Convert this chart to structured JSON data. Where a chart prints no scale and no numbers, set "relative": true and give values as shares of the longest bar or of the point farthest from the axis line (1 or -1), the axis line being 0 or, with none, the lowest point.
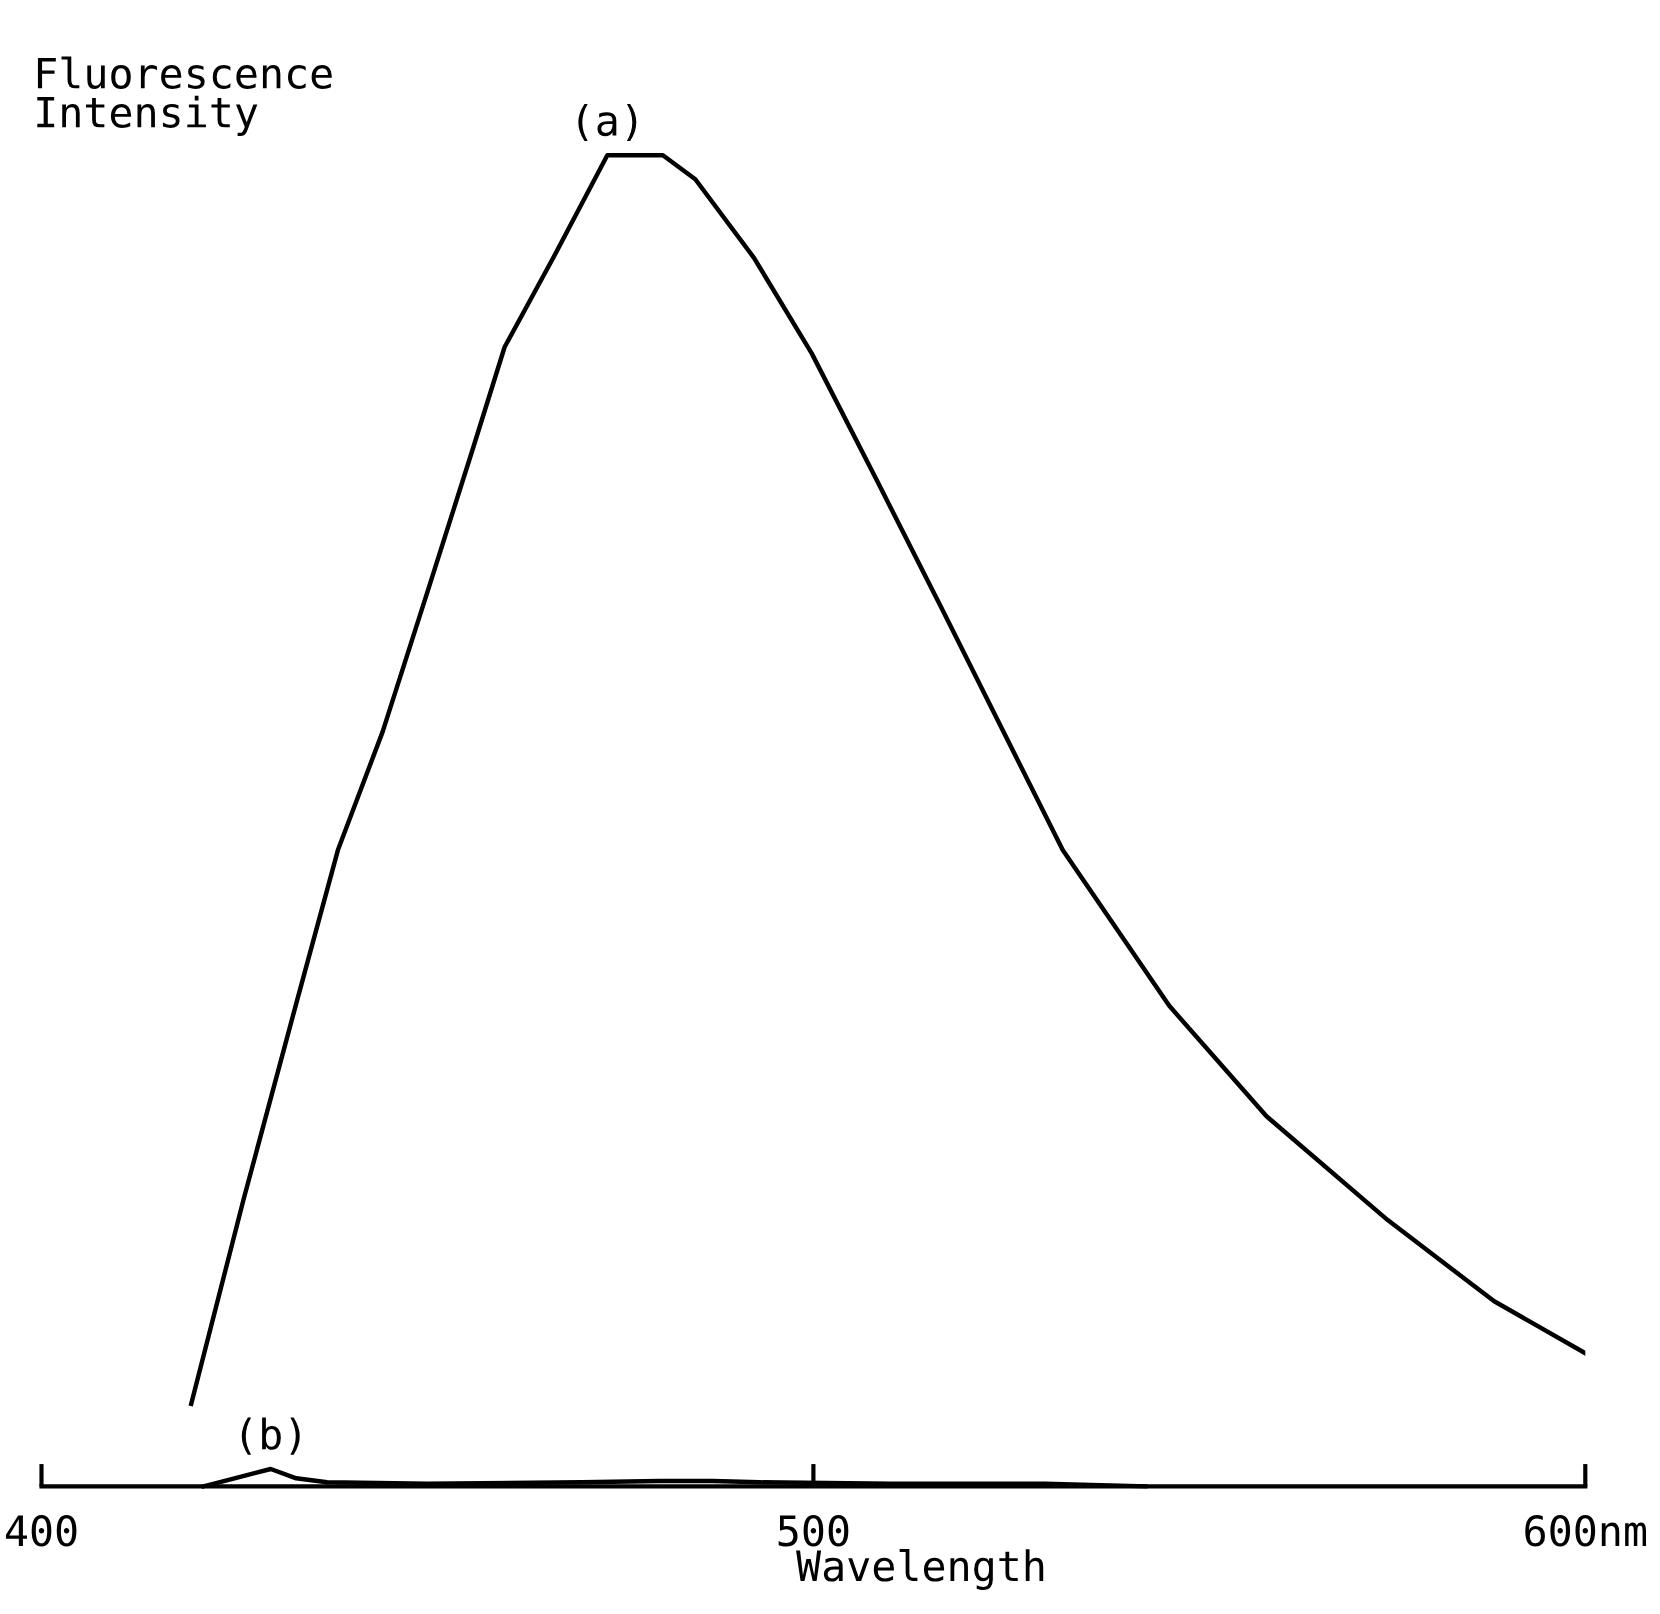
{
  "chart_data": {
    "type": "line",
    "relative": true,
    "xlabel": "Wavelength",
    "ylabel": "Fluorescence\nIntensity",
    "xlim": [
      400,
      600
    ],
    "xticks": [
      400,
      500,
      {
        "value": 600,
        "label": "600nm"
      }
    ],
    "grid": false,
    "legend": false,
    "marker": "none",
    "line_style": "solid",
    "series": [
      {
        "name": "(a)",
        "color": "#000000",
        "x": [
          419.4,
          426.2,
          433.2,
          438.4,
          444.2,
          450,
          455.8,
          460,
          466.3,
          473.3,
          480.5,
          484.7,
          492.3,
          499.8,
          508.2,
          516.5,
          532.3,
          546.1,
          558.7,
          574.4,
          588.2,
          600
        ],
        "values": [
          0.062,
          0.216,
          0.367,
          0.478,
          0.567,
          0.672,
          0.778,
          0.856,
          0.923,
          1.0,
          1.0,
          0.982,
          0.923,
          0.851,
          0.756,
          0.661,
          0.478,
          0.361,
          0.278,
          0.2,
          0.139,
          0.1
        ]
      },
      {
        "name": "(b)",
        "color": "#000000",
        "x": [
          421,
          425,
          429.7,
          433,
          437,
          450,
          470,
          480,
          487,
          493,
          510,
          530,
          543
        ],
        "values": [
          0.0,
          0.006,
          0.013,
          0.006,
          0.003,
          0.002,
          0.003,
          0.004,
          0.004,
          0.003,
          0.002,
          0.002,
          0.0
        ]
      }
    ]
  }
}
